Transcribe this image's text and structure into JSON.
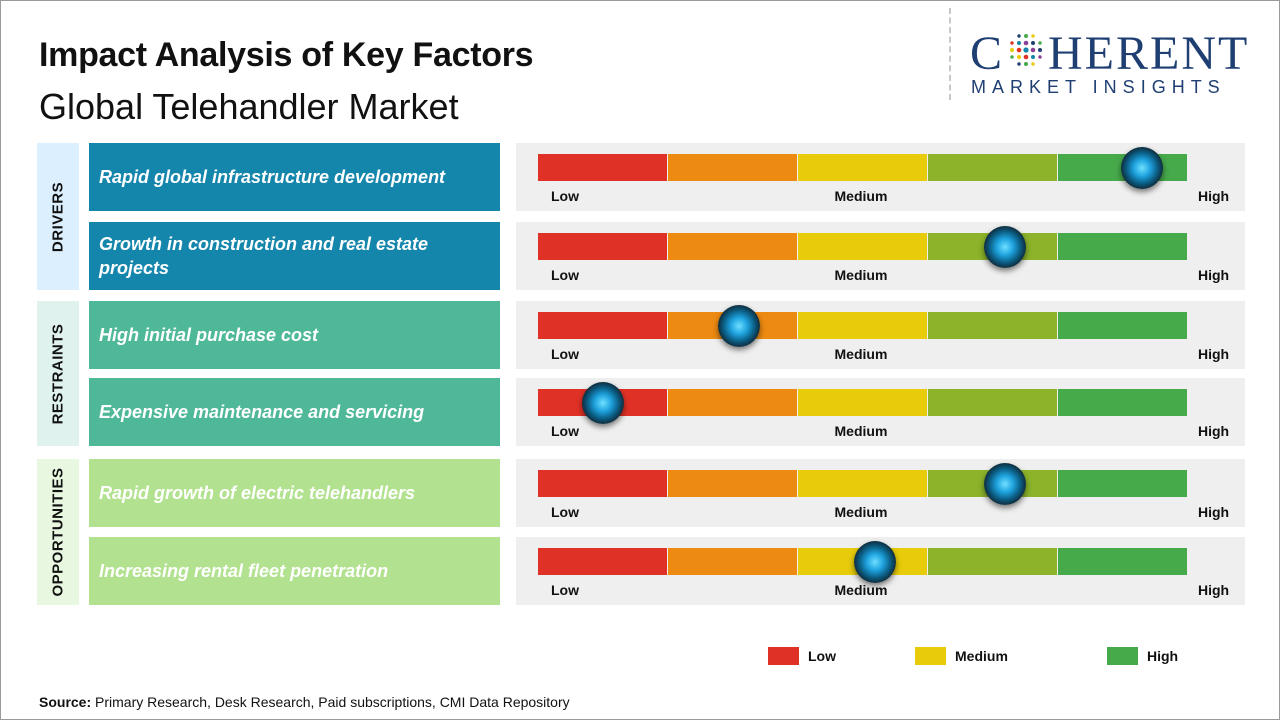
{
  "title": "Impact Analysis of Key Factors",
  "subtitle": "Global Telehandler Market",
  "logo": {
    "top": "C HERENT",
    "bottom": "MARKET INSIGHTS"
  },
  "scale_colors": [
    "#e03126",
    "#ed8a12",
    "#e8cb0a",
    "#8cb32a",
    "#46a94a"
  ],
  "chart_data": {
    "type": "table",
    "scale_labels": {
      "low": "Low",
      "medium": "Medium",
      "high": "High"
    },
    "categories": [
      {
        "name": "DRIVERS",
        "color": "#dcefff",
        "factors": [
          {
            "label": "Rapid global infrastructure development",
            "impact": 0.93,
            "color": "#1485ab"
          },
          {
            "label": "Growth in construction and real estate projects",
            "impact": 0.72,
            "color": "#1485ab"
          }
        ]
      },
      {
        "name": "RESTRAINTS",
        "color": "#dff2ee",
        "factors": [
          {
            "label": "High initial purchase cost",
            "impact": 0.31,
            "color": "#4fb898"
          },
          {
            "label": "Expensive maintenance and servicing",
            "impact": 0.1,
            "color": "#4fb898"
          }
        ]
      },
      {
        "name": "OPPORTUNITIES",
        "color": "#e8f7df",
        "factors": [
          {
            "label": "Rapid growth of electric telehandlers",
            "impact": 0.72,
            "color": "#b2e28f"
          },
          {
            "label": "Increasing rental fleet penetration",
            "impact": 0.52,
            "color": "#b2e28f"
          }
        ]
      }
    ]
  },
  "legend": [
    {
      "label": "Low",
      "color": "#e03126"
    },
    {
      "label": "Medium",
      "color": "#e8cb0a"
    },
    {
      "label": "High",
      "color": "#46a94a"
    }
  ],
  "source": {
    "prefix": "Source:",
    "text": " Primary Research, Desk Research, Paid subscriptions, CMI Data Repository"
  }
}
